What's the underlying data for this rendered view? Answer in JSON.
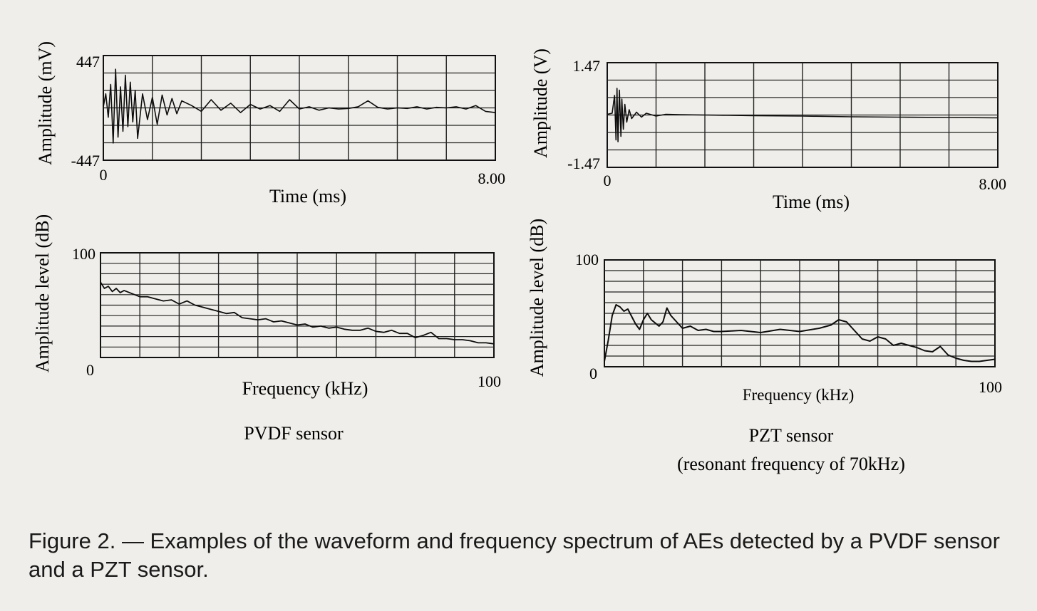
{
  "figure": {
    "caption": "Figure 2. — Examples of the waveform and frequency spectrum of AEs detected by a PVDF sensor and a PZT sensor."
  },
  "colors": {
    "ink": "#111111",
    "background": "#efeeea",
    "grid": "#222222"
  },
  "panels": {
    "pvdf": {
      "label": "PVDF sensor"
    },
    "pzt": {
      "label": "PZT sensor",
      "sublabel": "(resonant frequency of 70kHz)"
    }
  },
  "chart_data": [
    {
      "type": "line",
      "panel": "pvdf-waveform",
      "xlabel": "Time (ms)",
      "ylabel": "Amplitude (mV)",
      "xlim": [
        0,
        8.0
      ],
      "ylim": [
        -447,
        447
      ],
      "x_tick_labels": [
        "0",
        "8.00"
      ],
      "y_tick_labels": [
        "447",
        "-447"
      ],
      "grid": true,
      "series": [
        {
          "x": [
            0.0,
            0.05,
            0.1,
            0.15,
            0.2,
            0.25,
            0.3,
            0.35,
            0.4,
            0.45,
            0.5,
            0.55,
            0.6,
            0.65,
            0.7,
            0.8,
            0.9,
            1.0,
            1.1,
            1.2,
            1.3,
            1.4,
            1.5,
            1.6,
            1.8,
            2.0,
            2.2,
            2.4,
            2.6,
            2.8,
            3.0,
            3.2,
            3.4,
            3.6,
            3.8,
            4.0,
            4.2,
            4.4,
            4.6,
            4.8,
            5.0,
            5.2,
            5.4,
            5.6,
            5.8,
            6.0,
            6.2,
            6.4,
            6.6,
            6.8,
            7.0,
            7.2,
            7.4,
            7.6,
            7.8,
            8.0
          ],
          "y": [
            10,
            120,
            -80,
            200,
            -300,
            330,
            -250,
            180,
            -200,
            280,
            -160,
            220,
            -120,
            150,
            -260,
            120,
            -100,
            90,
            -140,
            110,
            -60,
            80,
            -50,
            60,
            20,
            -30,
            70,
            -20,
            40,
            -40,
            30,
            -10,
            20,
            -30,
            70,
            -10,
            10,
            -20,
            0,
            -10,
            -5,
            10,
            60,
            5,
            -10,
            0,
            -5,
            10,
            -10,
            5,
            0,
            10,
            -10,
            20,
            -30,
            -40
          ]
        }
      ]
    },
    {
      "type": "line",
      "panel": "pvdf-spectrum",
      "xlabel": "Frequency (kHz)",
      "ylabel": "Amplitude level (dB)",
      "xlim": [
        0,
        100
      ],
      "ylim": [
        0,
        100
      ],
      "x_tick_labels": [
        "0",
        "100"
      ],
      "y_tick_labels": [
        "100",
        "0"
      ],
      "grid": true,
      "series": [
        {
          "x": [
            0,
            1,
            2,
            3,
            4,
            5,
            6,
            8,
            10,
            12,
            14,
            16,
            18,
            20,
            22,
            24,
            26,
            28,
            30,
            32,
            34,
            36,
            38,
            40,
            42,
            44,
            46,
            48,
            50,
            52,
            54,
            56,
            58,
            60,
            62,
            64,
            66,
            68,
            70,
            72,
            74,
            76,
            78,
            80,
            82,
            84,
            86,
            88,
            90,
            92,
            94,
            96,
            98,
            100
          ],
          "y": [
            72,
            66,
            68,
            63,
            66,
            62,
            64,
            61,
            58,
            58,
            56,
            54,
            55,
            51,
            54,
            50,
            48,
            46,
            44,
            42,
            43,
            38,
            37,
            36,
            37,
            34,
            35,
            33,
            31,
            32,
            29,
            30,
            28,
            29,
            27,
            26,
            26,
            28,
            25,
            24,
            26,
            23,
            23,
            19,
            21,
            24,
            18,
            18,
            17,
            17,
            16,
            14,
            14,
            13
          ]
        }
      ]
    },
    {
      "type": "line",
      "panel": "pzt-waveform",
      "xlabel": "Time (ms)",
      "ylabel": "Amplitude (V)",
      "xlim": [
        0,
        8.0
      ],
      "ylim": [
        -1.47,
        1.47
      ],
      "x_tick_labels": [
        "0",
        "8.00"
      ],
      "y_tick_labels": [
        "1.47",
        "-1.47"
      ],
      "grid": true,
      "series": [
        {
          "x": [
            0.0,
            0.1,
            0.15,
            0.18,
            0.2,
            0.22,
            0.25,
            0.28,
            0.3,
            0.33,
            0.36,
            0.4,
            0.45,
            0.5,
            0.6,
            0.7,
            0.8,
            1.0,
            1.2,
            1.5,
            2.0,
            3.0,
            4.0,
            5.0,
            6.0,
            7.0,
            8.0
          ],
          "y": [
            0.02,
            0.05,
            0.55,
            -0.7,
            0.75,
            -0.75,
            0.7,
            -0.6,
            0.45,
            -0.4,
            0.3,
            -0.2,
            0.15,
            -0.1,
            0.08,
            -0.06,
            0.05,
            -0.03,
            0.02,
            0.01,
            0.0,
            -0.02,
            -0.03,
            -0.05,
            -0.06,
            -0.07,
            -0.08
          ]
        }
      ]
    },
    {
      "type": "line",
      "panel": "pzt-spectrum",
      "xlabel": "Frequency (kHz)",
      "ylabel": "Amplitude level (dB)",
      "xlim": [
        0,
        100
      ],
      "ylim": [
        0,
        100
      ],
      "x_tick_labels": [
        "0",
        "100"
      ],
      "y_tick_labels": [
        "100",
        "0"
      ],
      "grid": true,
      "series": [
        {
          "x": [
            0,
            1,
            2,
            3,
            4,
            5,
            6,
            8,
            9,
            10,
            11,
            12,
            14,
            15,
            16,
            17,
            18,
            19,
            20,
            22,
            24,
            26,
            28,
            30,
            35,
            40,
            45,
            50,
            55,
            58,
            60,
            62,
            64,
            66,
            68,
            70,
            72,
            74,
            76,
            78,
            80,
            82,
            84,
            86,
            88,
            90,
            92,
            94,
            96,
            98,
            100
          ],
          "y": [
            5,
            25,
            48,
            58,
            56,
            52,
            54,
            40,
            35,
            44,
            50,
            44,
            38,
            42,
            55,
            48,
            44,
            40,
            36,
            38,
            34,
            35,
            33,
            33,
            34,
            32,
            35,
            33,
            36,
            39,
            44,
            42,
            34,
            26,
            24,
            28,
            26,
            20,
            22,
            20,
            18,
            15,
            14,
            19,
            11,
            8,
            6,
            5,
            5,
            6,
            7
          ]
        }
      ]
    }
  ]
}
